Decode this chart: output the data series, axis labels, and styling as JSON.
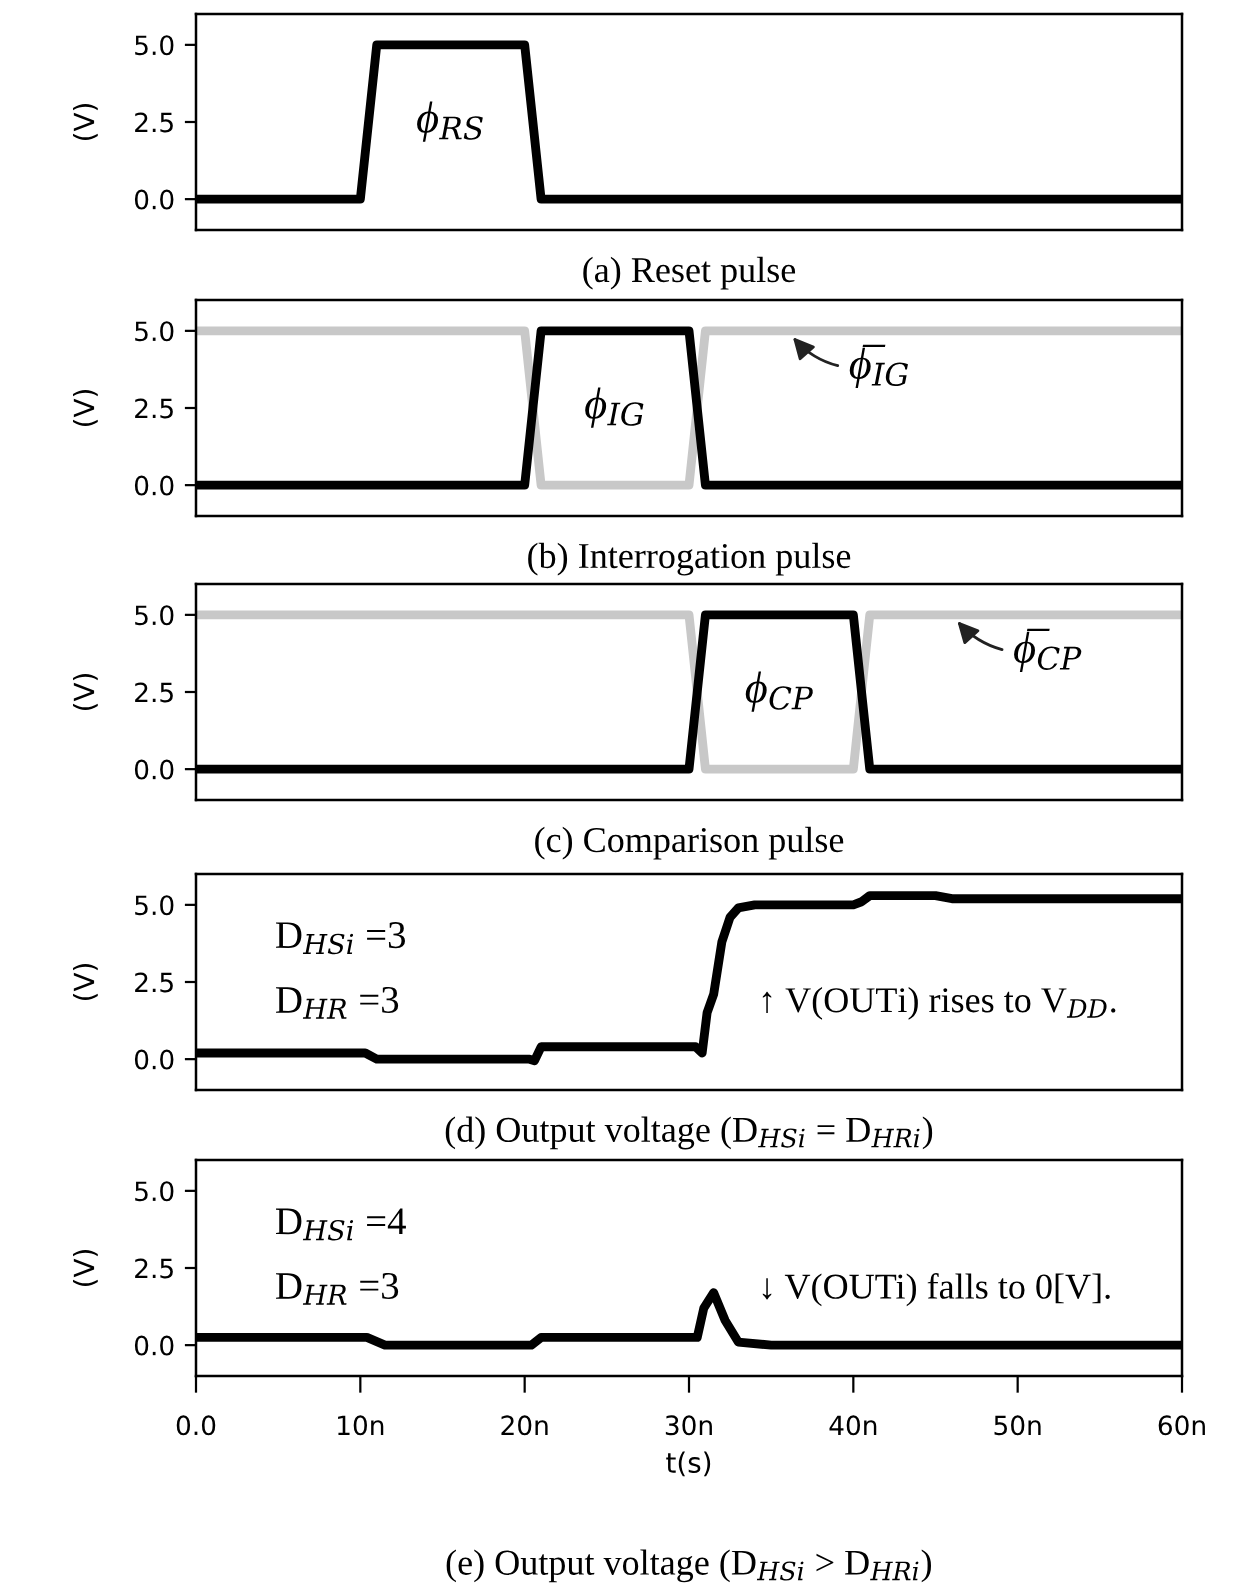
{
  "chart_data": [
    {
      "type": "line",
      "title": "(a) Reset pulse",
      "ylabel": "(V)",
      "xlim": [
        0,
        60
      ],
      "ylim": [
        -1,
        6
      ],
      "yticks": [
        {
          "value": 0,
          "label": "0.0"
        },
        {
          "value": 2.5,
          "label": "2.5"
        },
        {
          "value": 5,
          "label": "5.0"
        }
      ],
      "tick_labels": "y",
      "series": [
        {
          "name": "ϕ$_{RS}$",
          "color": "#000000",
          "x": [
            0,
            10,
            11,
            20,
            21,
            60
          ],
          "values": [
            0,
            0,
            5,
            5,
            0,
            0
          ]
        }
      ]
    },
    {
      "type": "line",
      "title": "(b) Interrogation pulse",
      "ylabel": "(V)",
      "xlim": [
        0,
        60
      ],
      "ylim": [
        -1,
        6
      ],
      "yticks": [
        {
          "value": 0,
          "label": "0.0"
        },
        {
          "value": 2.5,
          "label": "2.5"
        },
        {
          "value": 5,
          "label": "5.0"
        }
      ],
      "tick_labels": "y",
      "series": [
        {
          "name": "ϕ̅$_{IG}$",
          "color": "#c8c8c8",
          "x": [
            0,
            20,
            21,
            30,
            31,
            60
          ],
          "values": [
            5,
            5,
            0,
            0,
            5,
            5
          ]
        },
        {
          "name": "ϕ$_{IG}$",
          "color": "#000000",
          "x": [
            0,
            20,
            21,
            30,
            31,
            60
          ],
          "values": [
            0,
            0,
            5,
            5,
            0,
            0
          ]
        }
      ]
    },
    {
      "type": "line",
      "title": "(c) Comparison pulse",
      "ylabel": "(V)",
      "xlim": [
        0,
        60
      ],
      "ylim": [
        -1,
        6
      ],
      "yticks": [
        {
          "value": 0,
          "label": "0.0"
        },
        {
          "value": 2.5,
          "label": "2.5"
        },
        {
          "value": 5,
          "label": "5.0"
        }
      ],
      "tick_labels": "y",
      "series": [
        {
          "name": "ϕ̅$_{CP}$",
          "color": "#c8c8c8",
          "x": [
            0,
            30,
            31,
            40,
            41,
            60
          ],
          "values": [
            5,
            5,
            0,
            0,
            5,
            5
          ]
        },
        {
          "name": "ϕ$_{CP}$",
          "color": "#000000",
          "x": [
            0,
            30,
            31,
            40,
            41,
            60
          ],
          "values": [
            0,
            0,
            5,
            5,
            0,
            0
          ]
        }
      ]
    },
    {
      "type": "line",
      "title": "(d) Output voltage (D$_{HSi}$ = D$_{HRi}$)",
      "ylabel": "(V)",
      "xlim": [
        0,
        60
      ],
      "ylim": [
        -1,
        6
      ],
      "yticks": [
        {
          "value": 0,
          "label": "0.0"
        },
        {
          "value": 2.5,
          "label": "2.5"
        },
        {
          "value": 5,
          "label": "5.0"
        }
      ],
      "tick_labels": "y",
      "annotations": [
        "D$_{HSi}$ =3",
        "D$_{HR}$ =3",
        "↑ V(OUTi) rises to V$_{DD}$."
      ],
      "series": [
        {
          "color": "#000000",
          "x": [
            0,
            10.3,
            11,
            20.3,
            20.6,
            21,
            30.4,
            30.8,
            31.1,
            31.5,
            32,
            32.5,
            33,
            34,
            40,
            40.5,
            41,
            45,
            46,
            60
          ],
          "values": [
            0.2,
            0.2,
            0,
            0,
            -0.05,
            0.4,
            0.4,
            0.2,
            1.5,
            2.1,
            3.8,
            4.6,
            4.9,
            5,
            5,
            5.1,
            5.3,
            5.3,
            5.2,
            5.2
          ]
        }
      ]
    },
    {
      "type": "line",
      "title": "(e) Output voltage (D$_{HSi}$ > D$_{HRi}$)",
      "xlabel": "t(s)",
      "ylabel": "(V)",
      "xlim": [
        0,
        60
      ],
      "xticks": [
        {
          "value": 0,
          "label": "0.0"
        },
        {
          "value": 10,
          "label": "10n"
        },
        {
          "value": 20,
          "label": "20n"
        },
        {
          "value": 30,
          "label": "30n"
        },
        {
          "value": 40,
          "label": "40n"
        },
        {
          "value": 50,
          "label": "50n"
        },
        {
          "value": 60,
          "label": "60n"
        }
      ],
      "ylim": [
        -1,
        6
      ],
      "yticks": [
        {
          "value": 0,
          "label": "0.0"
        },
        {
          "value": 2.5,
          "label": "2.5"
        },
        {
          "value": 5,
          "label": "5.0"
        }
      ],
      "annotations": [
        "D$_{HSi}$ =4",
        "D$_{HR}$ =3",
        "↓ V(OUTi) falls to 0[V]."
      ],
      "series": [
        {
          "color": "#000000",
          "x": [
            0,
            10.4,
            11.5,
            20.4,
            21,
            30.5,
            30.9,
            31.5,
            32.2,
            33,
            35,
            40,
            41.5,
            60
          ],
          "values": [
            0.25,
            0.25,
            0,
            0,
            0.25,
            0.25,
            1.2,
            1.7,
            0.8,
            0.1,
            0,
            0,
            0,
            0
          ]
        }
      ]
    }
  ]
}
